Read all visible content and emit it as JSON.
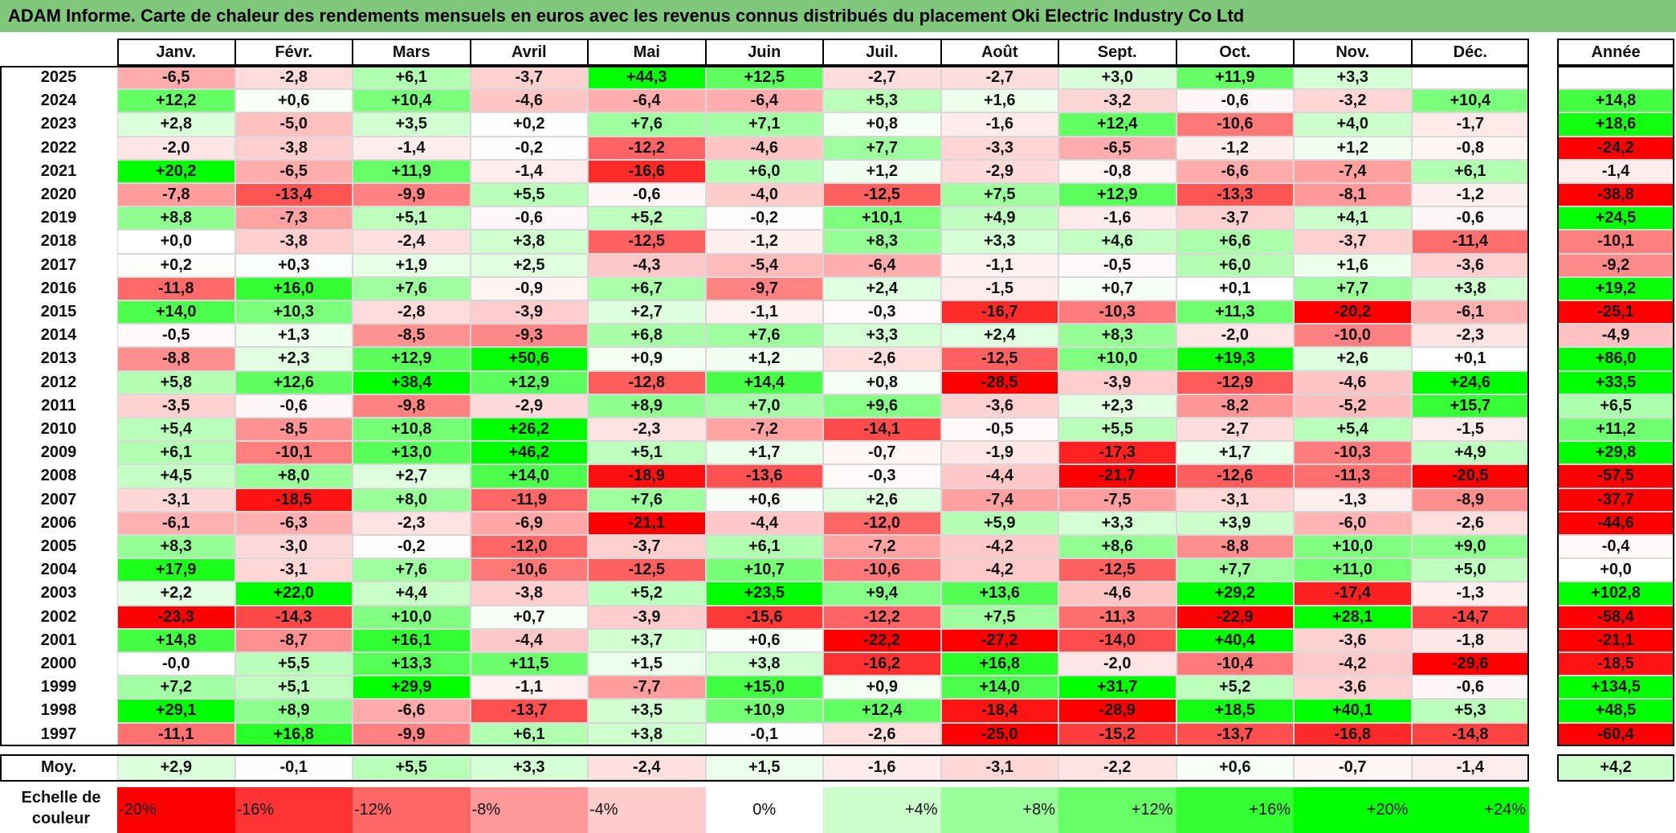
{
  "title": "ADAM Informe. Carte de chaleur des rendements mensuels en euros avec les revenus connus distribués du placement Oki Electric Industry Co Ltd",
  "colors": {
    "title_bg": "#7ec77b",
    "neg_max": "#ff0000",
    "pos_max": "#00ff00",
    "zero": "#ffffff"
  },
  "chart_data": {
    "type": "heatmap",
    "title": "ADAM Informe. Carte de chaleur des rendements mensuels en euros avec les revenus connus distribués du placement Oki Electric Industry Co Ltd",
    "columns": [
      "Janv.",
      "Févr.",
      "Mars",
      "Avril",
      "Mai",
      "Juin",
      "Juil.",
      "Août",
      "Sept.",
      "Oct.",
      "Nov.",
      "Déc."
    ],
    "annual_header": "Année",
    "avg_label": "Moy.",
    "rows": [
      {
        "year": "2025",
        "values": [
          "-6,5",
          "-2,8",
          "+6,1",
          "-3,7",
          "+44,3",
          "+12,5",
          "-2,7",
          "-2,7",
          "+3,0",
          "+11,9",
          "+3,3",
          ""
        ],
        "annual": ""
      },
      {
        "year": "2024",
        "values": [
          "+12,2",
          "+0,6",
          "+10,4",
          "-4,6",
          "-6,4",
          "-6,4",
          "+5,3",
          "+1,6",
          "-3,2",
          "-0,6",
          "-3,2",
          "+10,4"
        ],
        "annual": "+14,8"
      },
      {
        "year": "2023",
        "values": [
          "+2,8",
          "-5,0",
          "+3,5",
          "+0,2",
          "+7,6",
          "+7,1",
          "+0,8",
          "-1,6",
          "+12,4",
          "-10,6",
          "+4,0",
          "-1,7"
        ],
        "annual": "+18,6"
      },
      {
        "year": "2022",
        "values": [
          "-2,0",
          "-3,8",
          "-1,4",
          "-0,2",
          "-12,2",
          "-4,6",
          "+7,7",
          "-3,3",
          "-6,5",
          "-1,2",
          "+1,2",
          "-0,8"
        ],
        "annual": "-24,2"
      },
      {
        "year": "2021",
        "values": [
          "+20,2",
          "-6,5",
          "+11,9",
          "-1,4",
          "-16,6",
          "+6,0",
          "+1,2",
          "-2,9",
          "-0,8",
          "-6,6",
          "-7,4",
          "+6,1"
        ],
        "annual": "-1,4"
      },
      {
        "year": "2020",
        "values": [
          "-7,8",
          "-13,4",
          "-9,9",
          "+5,5",
          "-0,6",
          "-4,0",
          "-12,5",
          "+7,5",
          "+12,9",
          "-13,3",
          "-8,1",
          "-1,2"
        ],
        "annual": "-38,8"
      },
      {
        "year": "2019",
        "values": [
          "+8,8",
          "-7,3",
          "+5,1",
          "-0,6",
          "+5,2",
          "-0,2",
          "+10,1",
          "+4,9",
          "-1,6",
          "-3,7",
          "+4,1",
          "-0,6"
        ],
        "annual": "+24,5"
      },
      {
        "year": "2018",
        "values": [
          "+0,0",
          "-3,8",
          "-2,4",
          "+3,8",
          "-12,5",
          "-1,2",
          "+8,3",
          "+3,3",
          "+4,6",
          "+6,6",
          "-3,7",
          "-11,4"
        ],
        "annual": "-10,1"
      },
      {
        "year": "2017",
        "values": [
          "+0,2",
          "+0,3",
          "+1,9",
          "+2,5",
          "-4,3",
          "-5,4",
          "-6,4",
          "-1,1",
          "-0,5",
          "+6,0",
          "+1,6",
          "-3,6"
        ],
        "annual": "-9,2"
      },
      {
        "year": "2016",
        "values": [
          "-11,8",
          "+16,0",
          "+7,6",
          "-0,9",
          "+6,7",
          "-9,7",
          "+2,4",
          "-1,5",
          "+0,7",
          "+0,1",
          "+7,7",
          "+3,8"
        ],
        "annual": "+19,2"
      },
      {
        "year": "2015",
        "values": [
          "+14,0",
          "+10,3",
          "-2,8",
          "-3,9",
          "+2,7",
          "-1,1",
          "-0,3",
          "-16,7",
          "-10,3",
          "+11,3",
          "-20,2",
          "-6,1"
        ],
        "annual": "-25,1"
      },
      {
        "year": "2014",
        "values": [
          "-0,5",
          "+1,3",
          "-8,5",
          "-9,3",
          "+6,8",
          "+7,6",
          "+3,3",
          "+2,4",
          "+8,3",
          "-2,0",
          "-10,0",
          "-2,3"
        ],
        "annual": "-4,9"
      },
      {
        "year": "2013",
        "values": [
          "-8,8",
          "+2,3",
          "+12,9",
          "+50,6",
          "+0,9",
          "+1,2",
          "-2,6",
          "-12,5",
          "+10,0",
          "+19,3",
          "+2,6",
          "+0,1"
        ],
        "annual": "+86,0"
      },
      {
        "year": "2012",
        "values": [
          "+5,8",
          "+12,6",
          "+38,4",
          "+12,9",
          "-12,8",
          "+14,4",
          "+0,8",
          "-28,5",
          "-3,9",
          "-12,9",
          "-4,6",
          "+24,6"
        ],
        "annual": "+33,5"
      },
      {
        "year": "2011",
        "values": [
          "-3,5",
          "-0,6",
          "-9,8",
          "-2,9",
          "+8,9",
          "+7,0",
          "+9,6",
          "-3,6",
          "+2,3",
          "-8,2",
          "-5,2",
          "+15,7"
        ],
        "annual": "+6,5"
      },
      {
        "year": "2010",
        "values": [
          "+5,4",
          "-8,5",
          "+10,8",
          "+26,2",
          "-2,3",
          "-7,2",
          "-14,1",
          "-0,5",
          "+5,5",
          "-2,7",
          "+5,4",
          "-1,5"
        ],
        "annual": "+11,2"
      },
      {
        "year": "2009",
        "values": [
          "+6,1",
          "-10,1",
          "+13,0",
          "+46,2",
          "+5,1",
          "+1,7",
          "-0,7",
          "-1,9",
          "-17,3",
          "+1,7",
          "-10,3",
          "+4,9"
        ],
        "annual": "+29,8"
      },
      {
        "year": "2008",
        "values": [
          "+4,5",
          "+8,0",
          "+2,7",
          "+14,0",
          "-18,9",
          "-13,6",
          "-0,3",
          "-4,4",
          "-21,7",
          "-12,6",
          "-11,3",
          "-20,5"
        ],
        "annual": "-57,5"
      },
      {
        "year": "2007",
        "values": [
          "-3,1",
          "-18,5",
          "+8,0",
          "-11,9",
          "+7,6",
          "+0,6",
          "+2,6",
          "-7,4",
          "-7,5",
          "-3,1",
          "-1,3",
          "-8,9"
        ],
        "annual": "-37,7"
      },
      {
        "year": "2006",
        "values": [
          "-6,1",
          "-6,3",
          "-2,3",
          "-6,9",
          "-21,1",
          "-4,4",
          "-12,0",
          "+5,9",
          "+3,3",
          "+3,9",
          "-6,0",
          "-2,6"
        ],
        "annual": "-44,6"
      },
      {
        "year": "2005",
        "values": [
          "+8,3",
          "-3,0",
          "-0,2",
          "-12,0",
          "-3,7",
          "+6,1",
          "-7,2",
          "-4,2",
          "+8,6",
          "-8,8",
          "+10,0",
          "+9,0"
        ],
        "annual": "-0,4"
      },
      {
        "year": "2004",
        "values": [
          "+17,9",
          "-3,1",
          "+7,6",
          "-10,6",
          "-12,5",
          "+10,7",
          "-10,6",
          "-4,2",
          "-12,5",
          "+7,7",
          "+11,0",
          "+5,0"
        ],
        "annual": "+0,0"
      },
      {
        "year": "2003",
        "values": [
          "+2,2",
          "+22,0",
          "+4,4",
          "-3,8",
          "+5,2",
          "+23,5",
          "+9,4",
          "+13,6",
          "-4,6",
          "+29,2",
          "-17,4",
          "-1,3"
        ],
        "annual": "+102,8"
      },
      {
        "year": "2002",
        "values": [
          "-23,3",
          "-14,3",
          "+10,0",
          "+0,7",
          "-3,9",
          "-15,6",
          "-12,2",
          "+7,5",
          "-11,3",
          "-22,9",
          "+28,1",
          "-14,7"
        ],
        "annual": "-58,4"
      },
      {
        "year": "2001",
        "values": [
          "+14,8",
          "-8,7",
          "+16,1",
          "-4,4",
          "+3,7",
          "+0,6",
          "-22,2",
          "-27,2",
          "-14,0",
          "+40,4",
          "-3,6",
          "-1,8"
        ],
        "annual": "-21,1"
      },
      {
        "year": "2000",
        "values": [
          "-0,0",
          "+5,5",
          "+13,3",
          "+11,5",
          "+1,5",
          "+3,8",
          "-16,2",
          "+16,8",
          "-2,0",
          "-10,4",
          "-4,2",
          "-29,6"
        ],
        "annual": "-18,5"
      },
      {
        "year": "1999",
        "values": [
          "+7,2",
          "+5,1",
          "+29,9",
          "-1,1",
          "-7,7",
          "+15,0",
          "+0,9",
          "+14,0",
          "+31,7",
          "+5,2",
          "-3,6",
          "-0,6"
        ],
        "annual": "+134,5"
      },
      {
        "year": "1998",
        "values": [
          "+29,1",
          "+8,9",
          "-6,6",
          "-13,7",
          "+3,5",
          "+10,9",
          "+12,4",
          "-18,4",
          "-28,9",
          "+18,5",
          "+40,1",
          "+5,3"
        ],
        "annual": "+48,5"
      },
      {
        "year": "1997",
        "values": [
          "-11,1",
          "+16,8",
          "-9,9",
          "+6,1",
          "+3,8",
          "-0,1",
          "-2,6",
          "-25,0",
          "-15,2",
          "-13,7",
          "-16,8",
          "-14,8"
        ],
        "annual": "-60,4"
      }
    ],
    "averages": [
      "+2,9",
      "-0,1",
      "+5,5",
      "+3,3",
      "-2,4",
      "+1,5",
      "-1,6",
      "-3,1",
      "-2,2",
      "+0,6",
      "-0,7",
      "-1,4"
    ],
    "annual_average": "+4,2",
    "scale": {
      "label_line1": "Echelle de",
      "label_line2": "couleur",
      "steps": [
        {
          "label": "-20%",
          "value": -20
        },
        {
          "label": "-16%",
          "value": -16
        },
        {
          "label": "-12%",
          "value": -12
        },
        {
          "label": "-8%",
          "value": -8
        },
        {
          "label": "-4%",
          "value": -4
        },
        {
          "label": "0%",
          "value": 0
        },
        {
          "label": "+4%",
          "value": 4
        },
        {
          "label": "+8%",
          "value": 8
        },
        {
          "label": "+12%",
          "value": 12
        },
        {
          "label": "+16%",
          "value": 16
        },
        {
          "label": "+20%",
          "value": 20
        },
        {
          "label": "+24%",
          "value": 24
        }
      ]
    }
  }
}
